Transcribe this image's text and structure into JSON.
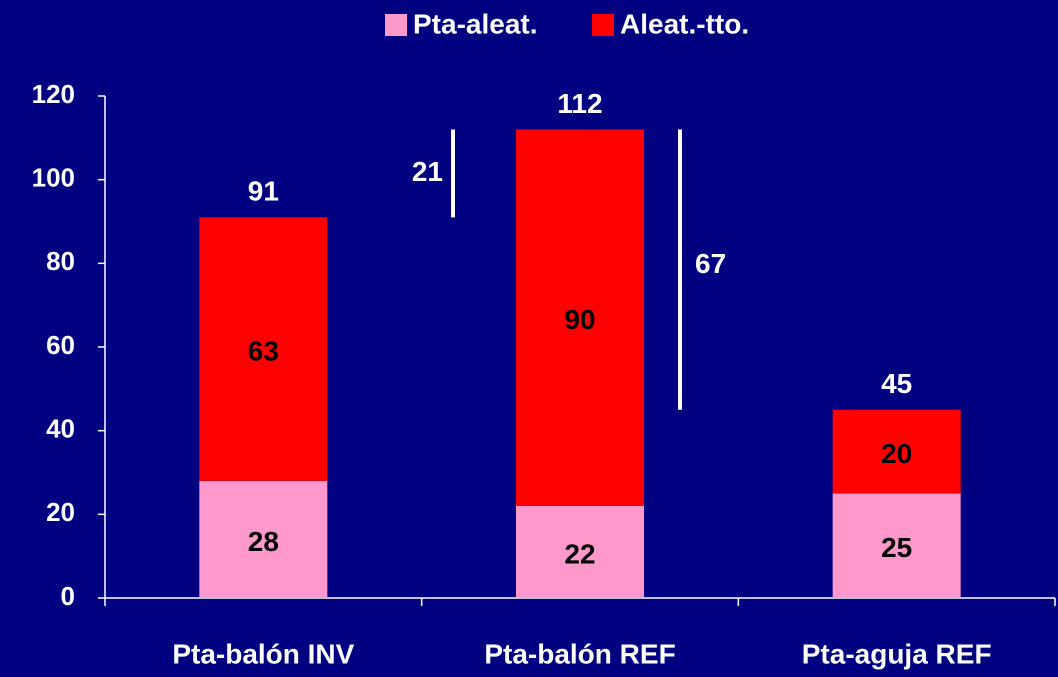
{
  "chart_data": {
    "type": "stacked-bar",
    "categories": [
      "Pta-balón INV",
      "Pta-balón REF",
      "Pta-aguja REF"
    ],
    "series": [
      {
        "name": "Pta-aleat.",
        "color": "#ff99cc",
        "values": [
          28,
          22,
          25
        ]
      },
      {
        "name": "Aleat.-tto.",
        "color": "#ff0000",
        "values": [
          63,
          90,
          20
        ]
      }
    ],
    "totals": [
      91,
      112,
      45
    ],
    "annotations": [
      {
        "text": "21",
        "from": 91,
        "to": 112
      },
      {
        "text": "67",
        "from": 45,
        "to": 112
      }
    ],
    "ylim": [
      0,
      120
    ],
    "yticks": [
      0,
      20,
      40,
      60,
      80,
      100,
      120
    ],
    "legend": "top"
  }
}
